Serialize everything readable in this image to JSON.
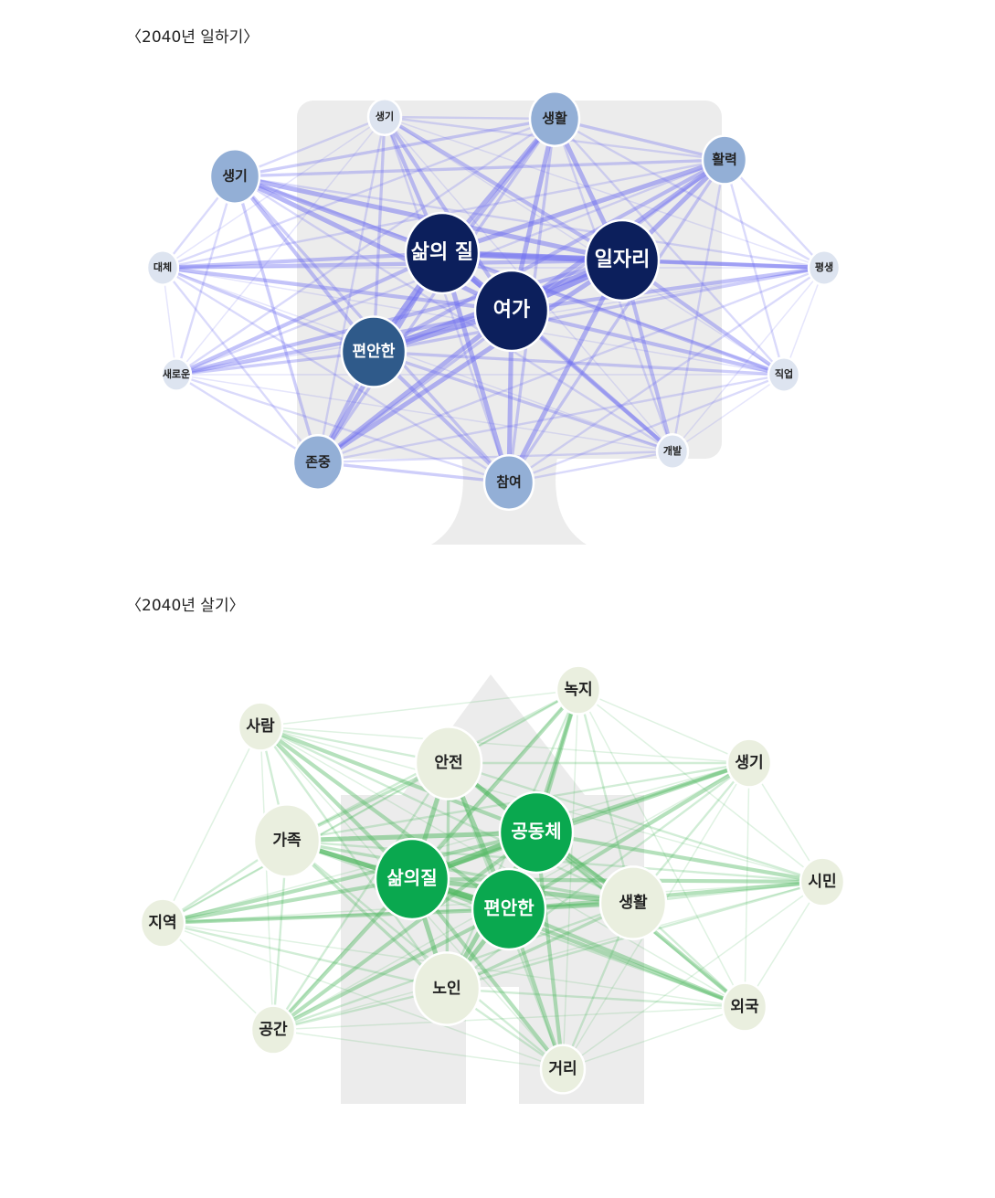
{
  "diagrams": [
    {
      "title": "〈2040년 일하기〉",
      "nodes": [
        {
          "label": "생기"
        },
        {
          "label": "생활"
        },
        {
          "label": "활력"
        },
        {
          "label": "생기"
        },
        {
          "label": "삶의 질"
        },
        {
          "label": "일자리"
        },
        {
          "label": "대체"
        },
        {
          "label": "평생"
        },
        {
          "label": "여가"
        },
        {
          "label": "편안한"
        },
        {
          "label": "새로운"
        },
        {
          "label": "직업"
        },
        {
          "label": "개발"
        },
        {
          "label": "존중"
        },
        {
          "label": "참여"
        }
      ]
    },
    {
      "title": "〈2040년 살기〉",
      "nodes": [
        {
          "label": "녹지"
        },
        {
          "label": "사람"
        },
        {
          "label": "안전"
        },
        {
          "label": "생기"
        },
        {
          "label": "가족"
        },
        {
          "label": "공동체"
        },
        {
          "label": "삶의질"
        },
        {
          "label": "시민"
        },
        {
          "label": "편안한"
        },
        {
          "label": "생활"
        },
        {
          "label": "지역"
        },
        {
          "label": "노인"
        },
        {
          "label": "외국"
        },
        {
          "label": "공간"
        },
        {
          "label": "거리"
        }
      ]
    }
  ]
}
